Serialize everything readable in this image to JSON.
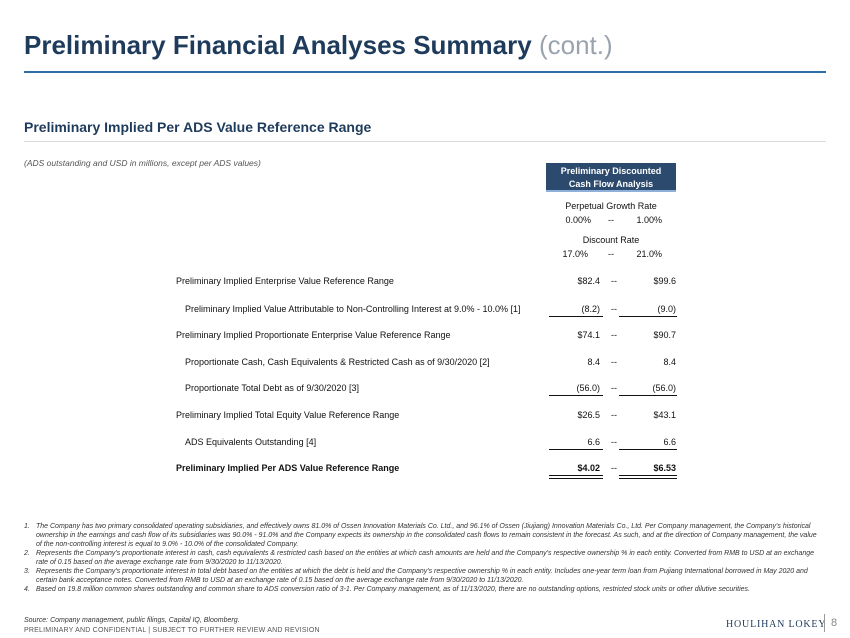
{
  "header": {
    "title": "Preliminary Financial Analyses Summary",
    "title_suffix": "(cont.)",
    "subtitle": "Preliminary Implied Per ADS Value Reference Range",
    "units_note": "(ADS outstanding and USD in millions, except per ADS values)"
  },
  "column_header": {
    "box_line1": "Preliminary Discounted",
    "box_line2": "Cash Flow Analysis",
    "growth_label": "Perpetual Growth Rate",
    "growth_low": "0.00%",
    "growth_high": "1.00%",
    "discount_label": "Discount Rate",
    "discount_low": "17.0%",
    "discount_high": "21.0%",
    "sep": "--"
  },
  "rows": [
    {
      "label": "Preliminary Implied Enterprise Value Reference Range",
      "low": "$82.4",
      "sep": "--",
      "high": "$99.6"
    },
    {
      "label": "Preliminary Implied Value Attributable to Non-Controlling Interest at 9.0% - 10.0% [1]",
      "low": "(8.2)",
      "sep": "--",
      "high": "(9.0)"
    },
    {
      "label": "Preliminary Implied Proportionate Enterprise Value Reference Range",
      "low": "$74.1",
      "sep": "--",
      "high": "$90.7"
    },
    {
      "label": "Proportionate Cash, Cash Equivalents & Restricted Cash as of 9/30/2020 [2]",
      "low": "8.4",
      "sep": "--",
      "high": "8.4"
    },
    {
      "label": "Proportionate Total Debt as of 9/30/2020 [3]",
      "low": "(56.0)",
      "sep": "--",
      "high": "(56.0)"
    },
    {
      "label": "Preliminary Implied Total Equity Value Reference Range",
      "low": "$26.5",
      "sep": "--",
      "high": "$43.1"
    },
    {
      "label": "ADS Equivalents Outstanding [4]",
      "low": "6.6",
      "sep": "--",
      "high": "6.6"
    },
    {
      "label": "Preliminary Implied Per ADS Value Reference Range",
      "low": "$4.02",
      "sep": "--",
      "high": "$6.53"
    }
  ],
  "footnotes": [
    {
      "n": "1.",
      "text": "The Company has two primary consolidated operating subsidiaries, and effectively owns 81.0% of Ossen Innovation Materials Co. Ltd., and 96.1% of Ossen (Jiujiang) Innovation Materials Co., Ltd. Per Company management, the Company's historical ownership in the earnings and cash flow of its subsidiaries was 90.0% - 91.0% and the Company expects its ownership in the consolidated cash flows to remain consistent in the forecast. As such, and at the direction of Company management, the value of the non-controlling interest is equal to 9.0% - 10.0% of the consolidated Company."
    },
    {
      "n": "2.",
      "text": "Represents the Company's proportionate interest in cash, cash equivalents & restricted cash based on the entities at which cash amounts are held and the Company's respective ownership % in each entity. Converted from RMB to USD at an exchange rate of 0.15 based on the average exchange rate from 9/30/2020 to 11/13/2020."
    },
    {
      "n": "3.",
      "text": "Represents the Company's proportionate interest in total debt based on the entities at which the debt is held and the Company's respective ownership % in each entity. Includes one-year term loan from Pujiang International borrowed in May 2020 and certain bank acceptance notes. Converted from RMB to USD at an exchange rate of 0.15 based on the average exchange rate from 9/30/2020 to 11/13/2020."
    },
    {
      "n": "4.",
      "text": "Based on 19.8 million common shares outstanding and common share to ADS conversion ratio of 3-1. Per Company management, as of 11/13/2020, there are no outstanding options, restricted stock units or other dilutive securities."
    }
  ],
  "footer": {
    "source": "Source: Company management, public filings, Capital IQ, Bloomberg.",
    "confidential": "PRELIMINARY AND CONFIDENTIAL | SUBJECT TO FURTHER REVIEW AND REVISION",
    "logo": "HOULIHAN LOKEY",
    "page": "8"
  }
}
